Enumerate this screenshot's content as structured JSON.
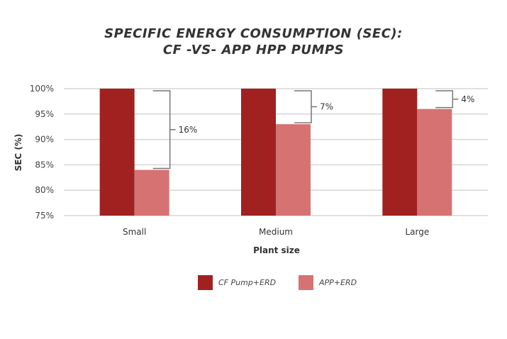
{
  "chart_data": {
    "type": "bar",
    "title": [
      "SPECIFIC ENERGY CONSUMPTION (SEC):",
      "CF -VS- APP HPP PUMPS"
    ],
    "xlabel": "Plant size",
    "ylabel": "SEC (%)",
    "categories": [
      "Small",
      "Medium",
      "Large"
    ],
    "series": [
      {
        "name": "CF Pump+ERD",
        "color": "#A12121",
        "values": [
          100,
          100,
          100
        ]
      },
      {
        "name": "APP+ERD",
        "color": "#D67272",
        "values": [
          84,
          93,
          96
        ]
      }
    ],
    "annotations": [
      "16%",
      "7%",
      "4%"
    ],
    "ylim": [
      75,
      100
    ],
    "yticks": [
      75,
      80,
      85,
      90,
      95,
      100
    ],
    "ytick_labels": [
      "75%",
      "80%",
      "85%",
      "90%",
      "95%",
      "100%"
    ],
    "grid": true,
    "legend": "bottom"
  }
}
